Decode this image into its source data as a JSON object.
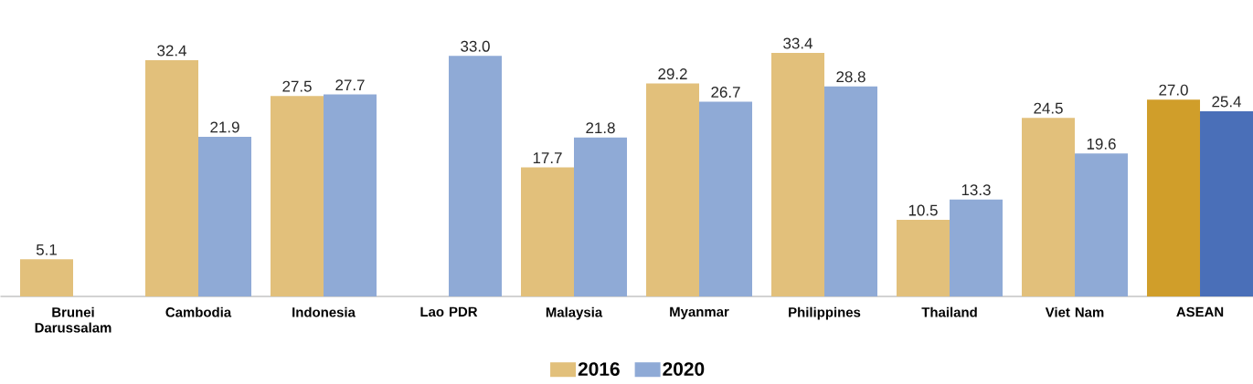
{
  "chart_data": {
    "type": "bar",
    "categories": [
      "Brunei Darussalam",
      "Cambodia",
      "Indonesia",
      "Lao PDR",
      "Malaysia",
      "Myanmar",
      "Philippines",
      "Thailand",
      "Viet Nam",
      "ASEAN"
    ],
    "series": [
      {
        "name": "2016",
        "color": "#e2c07b",
        "colors": [
          "#e2c07b",
          "#e2c07b",
          "#e2c07b",
          "#e2c07b",
          "#e2c07b",
          "#e2c07b",
          "#e2c07b",
          "#e2c07b",
          "#e2c07b",
          "#d09e2a"
        ],
        "values": [
          5.1,
          32.4,
          27.5,
          null,
          17.7,
          29.2,
          33.4,
          10.5,
          24.5,
          27.0
        ],
        "value_labels": [
          "5.1",
          "32.4",
          "27.5",
          null,
          "17.7",
          "29.2",
          "33.4",
          "10.5",
          "24.5",
          "27.0"
        ]
      },
      {
        "name": "2020",
        "color": "#8faad6",
        "colors": [
          "#8faad6",
          "#8faad6",
          "#8faad6",
          "#8faad6",
          "#8faad6",
          "#8faad6",
          "#8faad6",
          "#8faad6",
          "#8faad6",
          "#4a6fb8"
        ],
        "values": [
          null,
          21.9,
          27.7,
          33.0,
          21.8,
          26.7,
          28.8,
          13.3,
          19.6,
          25.4
        ],
        "value_labels": [
          null,
          "21.9",
          "27.7",
          "33.0",
          "21.8",
          "26.7",
          "28.8",
          "13.3",
          "19.6",
          "25.4"
        ]
      }
    ],
    "legend": "bottom"
  }
}
